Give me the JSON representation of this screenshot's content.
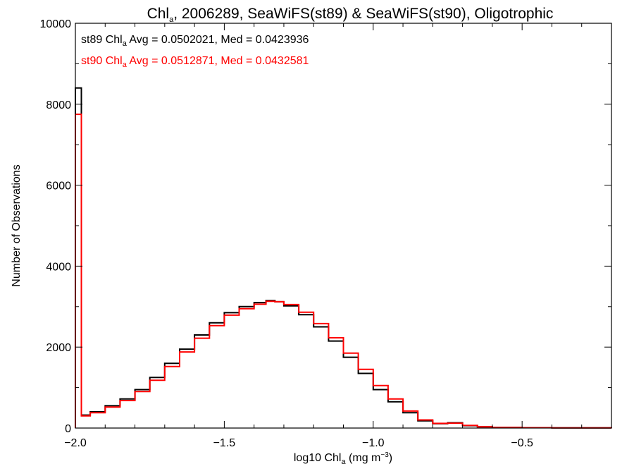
{
  "chart_data": {
    "type": "line",
    "step": true,
    "title": {
      "prefix": "Chl",
      "prefix_sub": "a",
      "rest": ", 2006289, SeaWiFS(st89) & SeaWiFS(st90), Oligotrophic"
    },
    "xlabel": {
      "prefix": "log10 Chl",
      "sub": "a",
      "mid": " (mg m",
      "sup": "−3",
      "end": ")"
    },
    "ylabel": "Number of Observations",
    "xlim": [
      -2.0,
      -0.2
    ],
    "ylim": [
      0,
      10000
    ],
    "x_ticks": [
      {
        "value": -2.0,
        "label": "−2.0"
      },
      {
        "value": -1.5,
        "label": "−1.5"
      },
      {
        "value": -1.0,
        "label": "−1.0"
      },
      {
        "value": -0.5,
        "label": "−0.5"
      }
    ],
    "y_ticks": [
      {
        "value": 0,
        "label": "0"
      },
      {
        "value": 2000,
        "label": "2000"
      },
      {
        "value": 4000,
        "label": "4000"
      },
      {
        "value": 6000,
        "label": "6000"
      },
      {
        "value": 8000,
        "label": "8000"
      },
      {
        "value": 10000,
        "label": "10000"
      }
    ],
    "grid": false,
    "legend_position": "top-left",
    "series": [
      {
        "legend": {
          "prefix": "st89 Chl",
          "sub": "a",
          "rest": " Avg = 0.0502021, Med = 0.0423936"
        },
        "color": "#000000",
        "x": [
          -2.0,
          -1.98,
          -1.95,
          -1.9,
          -1.85,
          -1.8,
          -1.75,
          -1.7,
          -1.65,
          -1.6,
          -1.55,
          -1.5,
          -1.45,
          -1.4,
          -1.36,
          -1.33,
          -1.3,
          -1.25,
          -1.2,
          -1.15,
          -1.1,
          -1.05,
          -1.0,
          -0.95,
          -0.9,
          -0.85,
          -0.8,
          -0.75,
          -0.7,
          -0.65,
          -0.6,
          -0.5,
          -0.4,
          -0.3,
          -0.2
        ],
        "y": [
          8400,
          320,
          400,
          550,
          720,
          950,
          1250,
          1600,
          1950,
          2300,
          2600,
          2850,
          3000,
          3100,
          3150,
          3120,
          3020,
          2800,
          2500,
          2150,
          1750,
          1350,
          950,
          650,
          380,
          180,
          110,
          130,
          60,
          30,
          15,
          8,
          5,
          3,
          2
        ]
      },
      {
        "legend": {
          "prefix": "st90 Chl",
          "sub": "a",
          "rest": " Avg = 0.0512871, Med = 0.0432581"
        },
        "color": "#ff0000",
        "x": [
          -2.0,
          -1.98,
          -1.95,
          -1.9,
          -1.85,
          -1.8,
          -1.75,
          -1.7,
          -1.65,
          -1.6,
          -1.55,
          -1.5,
          -1.45,
          -1.4,
          -1.36,
          -1.33,
          -1.3,
          -1.25,
          -1.2,
          -1.15,
          -1.1,
          -1.05,
          -1.0,
          -0.95,
          -0.9,
          -0.85,
          -0.8,
          -0.75,
          -0.7,
          -0.65,
          -0.6,
          -0.5,
          -0.4,
          -0.3,
          -0.2
        ],
        "y": [
          7750,
          300,
          380,
          520,
          680,
          900,
          1180,
          1520,
          1880,
          2220,
          2530,
          2790,
          2950,
          3060,
          3130,
          3120,
          3050,
          2860,
          2580,
          2230,
          1850,
          1450,
          1050,
          720,
          420,
          200,
          115,
          120,
          65,
          32,
          16,
          9,
          5,
          3,
          2
        ]
      }
    ]
  }
}
